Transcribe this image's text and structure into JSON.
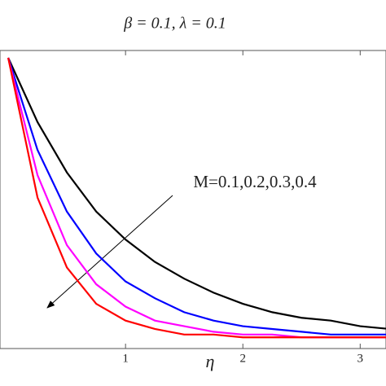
{
  "chart_data": {
    "type": "line",
    "title": "β = 0.1, λ = 0.1",
    "annotation": "M=0.1,0.2,0.3,0.4",
    "x_label": "η",
    "x": [
      0,
      0.25,
      0.5,
      0.75,
      1,
      1.25,
      1.5,
      1.75,
      2,
      2.25,
      2.5,
      2.75,
      3,
      3.25
    ],
    "series": [
      {
        "color": "#000000",
        "values": [
          1,
          0.77,
          0.59,
          0.45,
          0.35,
          0.27,
          0.21,
          0.16,
          0.12,
          0.09,
          0.07,
          0.06,
          0.04,
          0.03
        ]
      },
      {
        "color": "#0000ff",
        "values": [
          1,
          0.67,
          0.45,
          0.3,
          0.2,
          0.14,
          0.09,
          0.06,
          0.04,
          0.03,
          0.02,
          0.01,
          0.01,
          0.01
        ]
      },
      {
        "color": "#ff00ff",
        "values": [
          1,
          0.58,
          0.33,
          0.19,
          0.11,
          0.06,
          0.04,
          0.02,
          0.01,
          0.01,
          0,
          0,
          0,
          0
        ]
      },
      {
        "color": "#ff0000",
        "values": [
          1,
          0.5,
          0.25,
          0.12,
          0.06,
          0.03,
          0.01,
          0.01,
          0,
          0,
          0,
          0,
          0,
          0
        ]
      }
    ],
    "xlim": [
      -0.07,
      3.22
    ],
    "ylim": [
      -0.04,
      1
    ],
    "xticks": [
      1,
      2,
      3
    ]
  }
}
